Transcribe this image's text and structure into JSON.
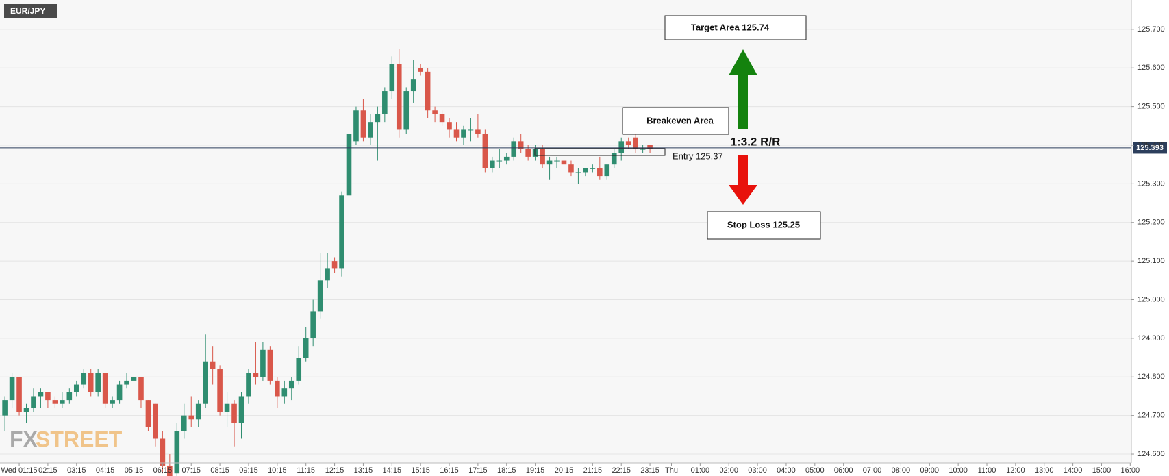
{
  "chart_data": {
    "type": "candlestick",
    "title": "EUR/JPY",
    "x": [
      0.75,
      1,
      1.25,
      1.5,
      1.75,
      2,
      2.25,
      2.5,
      2.75,
      3,
      3.25,
      3.5,
      3.75,
      4,
      4.25,
      4.5,
      4.75,
      5,
      5.25,
      5.5,
      5.75,
      6,
      6.25,
      6.5,
      6.75,
      7,
      7.25,
      7.5,
      7.75,
      8,
      8.25,
      8.5,
      8.75,
      9,
      9.25,
      9.5,
      9.75,
      10,
      10.25,
      10.5,
      10.75,
      11,
      11.25,
      11.5,
      11.75,
      12,
      12.25,
      12.5,
      12.75,
      13,
      13.25,
      13.5,
      13.75,
      14,
      14.25,
      14.5,
      14.75,
      15,
      15.25,
      15.5,
      15.75,
      16,
      16.25,
      16.5,
      16.75,
      17,
      17.25,
      17.5,
      17.75,
      18,
      18.25,
      18.5,
      18.75,
      19,
      19.25,
      19.5,
      19.75,
      20,
      20.25,
      20.5,
      20.75,
      21,
      21.25,
      21.5,
      21.75,
      22,
      22.25,
      22.5,
      22.75,
      23,
      23.25
    ],
    "open": [
      124.7,
      124.74,
      124.8,
      124.71,
      124.72,
      124.75,
      124.76,
      124.74,
      124.73,
      124.74,
      124.76,
      124.78,
      124.81,
      124.76,
      124.81,
      124.73,
      124.74,
      124.78,
      124.79,
      124.8,
      124.74,
      124.73,
      124.64,
      124.57,
      124.55,
      124.66,
      124.7,
      124.69,
      124.73,
      124.84,
      124.82,
      124.71,
      124.73,
      124.68,
      124.75,
      124.81,
      124.8,
      124.87,
      124.79,
      124.75,
      124.77,
      124.79,
      124.85,
      124.9,
      124.97,
      125.05,
      125.1,
      125.08,
      125.27,
      125.41,
      125.49,
      125.42,
      125.46,
      125.48,
      125.54,
      125.61,
      125.44,
      125.54,
      125.6,
      125.59,
      125.49,
      125.48,
      125.46,
      125.44,
      125.42,
      125.44,
      125.44,
      125.43,
      125.34,
      125.36,
      125.36,
      125.37,
      125.41,
      125.39,
      125.37,
      125.39,
      125.35,
      125.36,
      125.36,
      125.35,
      125.33,
      125.33,
      125.34,
      125.34,
      125.32,
      125.35,
      125.38,
      125.41,
      125.42,
      125.39,
      125.4
    ],
    "high": [
      124.75,
      124.81,
      124.8,
      124.73,
      124.77,
      124.77,
      124.76,
      124.75,
      124.76,
      124.77,
      124.79,
      124.82,
      124.82,
      124.82,
      124.81,
      124.75,
      124.79,
      124.81,
      124.82,
      124.8,
      124.74,
      124.73,
      124.66,
      124.6,
      124.68,
      124.73,
      124.75,
      124.74,
      124.91,
      124.88,
      124.83,
      124.76,
      124.74,
      124.76,
      124.82,
      124.89,
      124.89,
      124.88,
      124.8,
      124.79,
      124.8,
      124.88,
      124.93,
      125.0,
      125.12,
      125.12,
      125.11,
      125.28,
      125.46,
      125.5,
      125.52,
      125.48,
      125.5,
      125.55,
      125.63,
      125.65,
      125.55,
      125.62,
      125.61,
      125.6,
      125.5,
      125.49,
      125.47,
      125.46,
      125.45,
      125.47,
      125.48,
      125.44,
      125.37,
      125.39,
      125.38,
      125.42,
      125.43,
      125.4,
      125.4,
      125.4,
      125.37,
      125.37,
      125.37,
      125.36,
      125.34,
      125.34,
      125.35,
      125.37,
      125.35,
      125.39,
      125.42,
      125.42,
      125.43,
      125.4,
      125.4
    ],
    "low": [
      124.66,
      124.72,
      124.7,
      124.68,
      124.71,
      124.72,
      124.72,
      124.72,
      124.72,
      124.73,
      124.75,
      124.77,
      124.75,
      124.75,
      124.72,
      124.72,
      124.73,
      124.77,
      124.78,
      124.72,
      124.66,
      124.62,
      124.55,
      124.52,
      124.53,
      124.64,
      124.67,
      124.67,
      124.72,
      124.78,
      124.7,
      124.67,
      124.62,
      124.64,
      124.73,
      124.78,
      124.79,
      124.78,
      124.72,
      124.73,
      124.74,
      124.78,
      124.84,
      124.88,
      124.95,
      125.03,
      125.07,
      125.06,
      125.25,
      125.4,
      125.41,
      125.4,
      125.36,
      125.46,
      125.52,
      125.42,
      125.43,
      125.51,
      125.58,
      125.47,
      125.46,
      125.45,
      125.42,
      125.41,
      125.4,
      125.41,
      125.42,
      125.33,
      125.33,
      125.34,
      125.35,
      125.36,
      125.38,
      125.36,
      125.36,
      125.34,
      125.31,
      125.34,
      125.34,
      125.32,
      125.3,
      125.32,
      125.33,
      125.31,
      125.31,
      125.34,
      125.36,
      125.39,
      125.38,
      125.38,
      125.38
    ],
    "close": [
      124.74,
      124.8,
      124.71,
      124.72,
      124.75,
      124.76,
      124.74,
      124.73,
      124.74,
      124.76,
      124.78,
      124.81,
      124.76,
      124.81,
      124.73,
      124.74,
      124.78,
      124.79,
      124.8,
      124.74,
      124.67,
      124.64,
      124.57,
      124.53,
      124.66,
      124.7,
      124.69,
      124.73,
      124.84,
      124.82,
      124.71,
      124.73,
      124.68,
      124.75,
      124.81,
      124.8,
      124.87,
      124.79,
      124.75,
      124.77,
      124.79,
      124.85,
      124.9,
      124.97,
      125.05,
      125.08,
      125.08,
      125.27,
      125.43,
      125.49,
      125.42,
      125.46,
      125.48,
      125.54,
      125.61,
      125.44,
      125.54,
      125.57,
      125.59,
      125.49,
      125.48,
      125.46,
      125.44,
      125.42,
      125.44,
      125.44,
      125.43,
      125.34,
      125.36,
      125.36,
      125.37,
      125.41,
      125.39,
      125.37,
      125.39,
      125.35,
      125.36,
      125.36,
      125.35,
      125.33,
      125.33,
      125.34,
      125.34,
      125.32,
      125.35,
      125.38,
      125.41,
      125.4,
      125.39,
      125.39,
      125.39
    ],
    "up_color": "#2f8d70",
    "down_color": "#d9574a",
    "xlim": [
      0.58,
      40.04
    ],
    "xticks": [
      {
        "value": 1.25,
        "label": "Wed 01:15"
      },
      {
        "value": 2.25,
        "label": "02:15"
      },
      {
        "value": 3.25,
        "label": "03:15"
      },
      {
        "value": 4.25,
        "label": "04:15"
      },
      {
        "value": 5.25,
        "label": "05:15"
      },
      {
        "value": 6.25,
        "label": "06:15"
      },
      {
        "value": 7.25,
        "label": "07:15"
      },
      {
        "value": 8.25,
        "label": "08:15"
      },
      {
        "value": 9.25,
        "label": "09:15"
      },
      {
        "value": 10.25,
        "label": "10:15"
      },
      {
        "value": 11.25,
        "label": "11:15"
      },
      {
        "value": 12.25,
        "label": "12:15"
      },
      {
        "value": 13.25,
        "label": "13:15"
      },
      {
        "value": 14.25,
        "label": "14:15"
      },
      {
        "value": 15.25,
        "label": "15:15"
      },
      {
        "value": 16.25,
        "label": "16:15"
      },
      {
        "value": 17.25,
        "label": "17:15"
      },
      {
        "value": 18.25,
        "label": "18:15"
      },
      {
        "value": 19.25,
        "label": "19:15"
      },
      {
        "value": 20.25,
        "label": "20:15"
      },
      {
        "value": 21.25,
        "label": "21:15"
      },
      {
        "value": 22.25,
        "label": "22:15"
      },
      {
        "value": 23.25,
        "label": "23:15"
      },
      {
        "value": 24,
        "label": "Thu"
      },
      {
        "value": 25,
        "label": "01:00"
      },
      {
        "value": 26,
        "label": "02:00"
      },
      {
        "value": 27,
        "label": "03:00"
      },
      {
        "value": 28,
        "label": "04:00"
      },
      {
        "value": 29,
        "label": "05:00"
      },
      {
        "value": 30,
        "label": "06:00"
      },
      {
        "value": 31,
        "label": "07:00"
      },
      {
        "value": 32,
        "label": "08:00"
      },
      {
        "value": 33,
        "label": "09:00"
      },
      {
        "value": 34,
        "label": "10:00"
      },
      {
        "value": 35,
        "label": "11:00"
      },
      {
        "value": 36,
        "label": "12:00"
      },
      {
        "value": 37,
        "label": "13:00"
      },
      {
        "value": 38,
        "label": "14:00"
      },
      {
        "value": 39,
        "label": "15:00"
      },
      {
        "value": 40,
        "label": "16:00"
      }
    ],
    "ylim": [
      124.577,
      125.776
    ],
    "yticks": [
      {
        "value": 124.6,
        "label": "124.600"
      },
      {
        "value": 124.7,
        "label": "124.700"
      },
      {
        "value": 124.8,
        "label": "124.800"
      },
      {
        "value": 124.9,
        "label": "124.900"
      },
      {
        "value": 125.0,
        "label": "125.000"
      },
      {
        "value": 125.1,
        "label": "125.100"
      },
      {
        "value": 125.2,
        "label": "125.200"
      },
      {
        "value": 125.3,
        "label": "125.300"
      },
      {
        "value": 125.4,
        "label": "125.400"
      },
      {
        "value": 125.5,
        "label": "125.500"
      },
      {
        "value": 125.6,
        "label": "125.600"
      },
      {
        "value": 125.7,
        "label": "125.700"
      }
    ],
    "grid": true,
    "last_price": 125.393,
    "annotations": {
      "target": "Target Area 125.74",
      "breakeven": "Breakeven Area",
      "entry": "Entry 125.37",
      "ratio": "1:3.2 R/R",
      "stop": "Stop Loss 125.25"
    },
    "watermark": {
      "left": "FX",
      "right": "STREET"
    }
  }
}
